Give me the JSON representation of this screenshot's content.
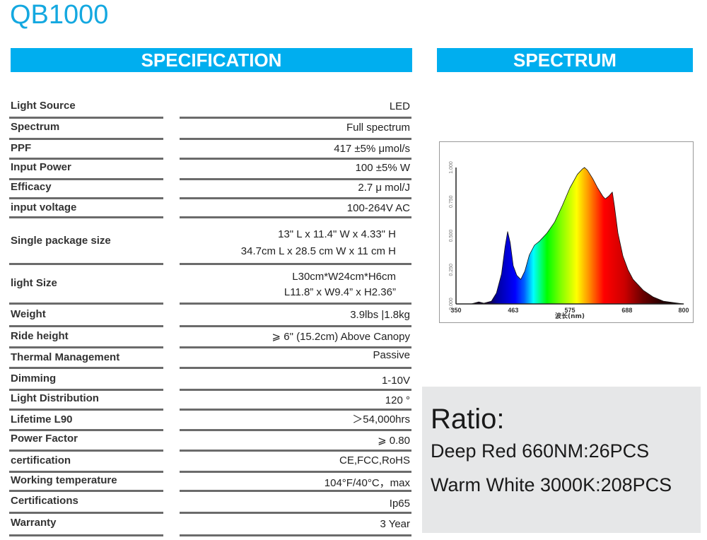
{
  "title": "QB1000",
  "sections": {
    "specification": "SPECIFICATION",
    "spectrum": "SPECTRUM"
  },
  "specs": [
    {
      "label": "Light Source",
      "value": [
        "LED"
      ]
    },
    {
      "label": "Spectrum",
      "value": [
        "Full spectrum"
      ]
    },
    {
      "label": "PPF",
      "value": [
        "417 ±5% μmol/s"
      ]
    },
    {
      "label": "Input Power",
      "value": [
        "100 ±5% W"
      ]
    },
    {
      "label": "Efficacy",
      "value": [
        "2.7 μ mol/J"
      ]
    },
    {
      "label": "input voltage",
      "value": [
        "100-264V AC"
      ]
    },
    {
      "label": "Single package size",
      "value": [
        "13\" L x 11.4\" W x 4.33\" H",
        "34.7cm L x 28.5 cm W x 11 cm H"
      ]
    },
    {
      "label": "light Size",
      "value": [
        "L30cm*W24cm*H6cm",
        "L11.8”  x W9.4”  x H2.36”"
      ]
    },
    {
      "label": "Weight",
      "value": [
        "3.9lbs |1.8kg"
      ]
    },
    {
      "label": "Ride height",
      "value": [
        "⩾  6\" (15.2cm) Above Canopy"
      ]
    },
    {
      "label": "Thermal Management",
      "value": [
        "Passive"
      ]
    },
    {
      "label": "Dimming",
      "value": [
        "1-10V"
      ]
    },
    {
      "label": "Light Distribution",
      "value": [
        "120 °"
      ]
    },
    {
      "label": "Lifetime L90",
      "value": [
        "＞54,000hrs"
      ]
    },
    {
      "label": "Power Factor",
      "value": [
        "⩾ 0.80"
      ]
    },
    {
      "label": "certification",
      "value": [
        "CE,FCC,RoHS"
      ]
    },
    {
      "label": "Working temperature",
      "value": [
        "104°F/40°C，max"
      ]
    },
    {
      "label": "Certifications",
      "value": [
        "Ip65"
      ]
    },
    {
      "label": "Warranty",
      "value": [
        "3 Year"
      ]
    }
  ],
  "ratio": {
    "title": "Ratio:",
    "lines": [
      "Deep Red 660NM:26PCS",
      "Warm White 3000K:208PCS"
    ]
  },
  "chart_data": {
    "type": "area",
    "title": "",
    "xlabel": "波长(nm)",
    "ylabel": "",
    "xlim": [
      350,
      800
    ],
    "ylim": [
      0,
      1.0
    ],
    "x_ticks": [
      "350",
      "463",
      "575",
      "688",
      "800"
    ],
    "y_ticks": [
      "0.000",
      "0.250",
      "0.500",
      "0.750",
      "1.000"
    ],
    "grid": false,
    "legend": null,
    "fill": "visible-spectrum gradient",
    "x": [
      350,
      380,
      395,
      405,
      420,
      430,
      440,
      447,
      452,
      457,
      463,
      470,
      478,
      486,
      495,
      505,
      515,
      530,
      545,
      560,
      575,
      590,
      600,
      604,
      610,
      620,
      630,
      640,
      645,
      652,
      659,
      663,
      670,
      680,
      690,
      700,
      720,
      740,
      760,
      780,
      800
    ],
    "values": [
      0.0,
      0.0,
      0.015,
      0.005,
      0.02,
      0.08,
      0.22,
      0.42,
      0.53,
      0.45,
      0.28,
      0.21,
      0.18,
      0.24,
      0.36,
      0.43,
      0.46,
      0.52,
      0.6,
      0.72,
      0.85,
      0.95,
      0.99,
      1.0,
      0.98,
      0.92,
      0.85,
      0.79,
      0.77,
      0.79,
      0.82,
      0.72,
      0.52,
      0.35,
      0.25,
      0.18,
      0.1,
      0.05,
      0.02,
      0.01,
      0.0
    ]
  }
}
